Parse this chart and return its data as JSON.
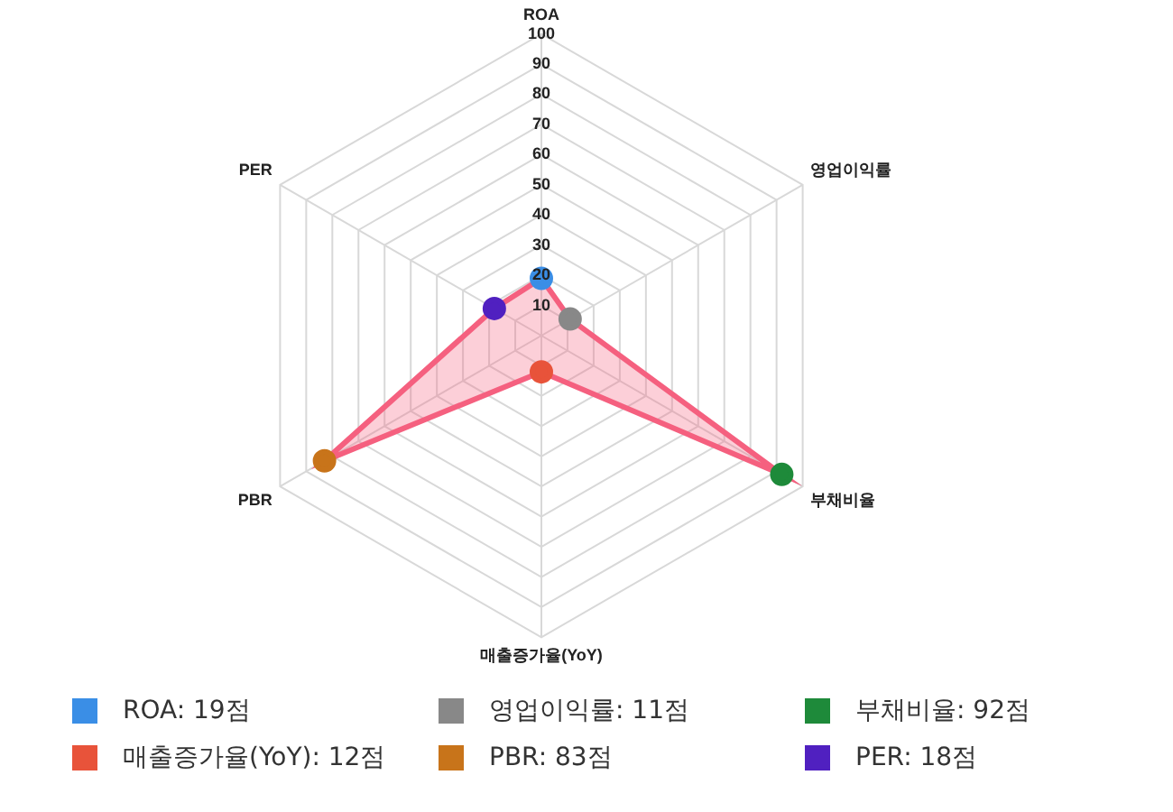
{
  "chart_data": {
    "type": "radar",
    "categories": [
      "ROA",
      "영업이익률",
      "부채비율",
      "매출증가율(YoY)",
      "PBR",
      "PER"
    ],
    "series": [
      {
        "color": "#f5607f",
        "colors": [
          "#3a8ee6",
          "#888888",
          "#1e8a3a",
          "#e8533a",
          "#c8741a",
          "#5020c0"
        ],
        "values": [
          19,
          11,
          92,
          12,
          83,
          18
        ]
      }
    ],
    "annotations": [
      "ROA: 19점",
      "영업이익률: 11점",
      "부채비율: 92점",
      "매출증가율(YoY): 12점",
      "PBR: 83점",
      "PER: 18점"
    ],
    "ylim": [
      0,
      100
    ],
    "yticks": [
      10,
      20,
      30,
      40,
      50,
      60,
      70,
      80,
      90,
      100
    ],
    "grid": true
  }
}
